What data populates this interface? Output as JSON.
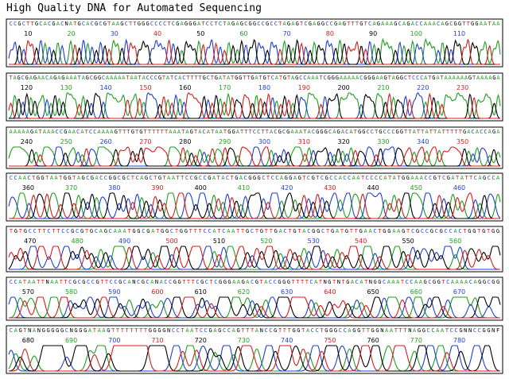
{
  "title": "High Quality DNA for Automated Sequencing",
  "colors": {
    "A": "#1f9e1f",
    "C": "#1f3fd0",
    "G": "#000000",
    "T": "#d41c1c",
    "N": "#000000"
  },
  "chart_data": {
    "type": "line",
    "description_of_series": "four-channel fluorescence chromatogram traces",
    "series": [
      {
        "base": "A",
        "color": "#1f9e1f"
      },
      {
        "base": "C",
        "color": "#1f3fd0"
      },
      {
        "base": "G",
        "color": "#000000"
      },
      {
        "base": "T",
        "color": "#d41c1c"
      }
    ],
    "panels": [
      {
        "sequence": "CCGCTTGCACGACNATGCACGCGTAAGCTTGGGCCCCTCGAGGGATCCTCTAGAGCGGCCGCCTAGAGTCGAGGCCGAGTTTGTCAGAAAGCAGACCAAACAGCGGTTGGAATAA",
        "ticks": [
          "10",
          "20",
          "30",
          "40",
          "50",
          "60",
          "70",
          "80",
          "90",
          "100",
          "110"
        ]
      },
      {
        "sequence": "TAGCGAGAACAGAGAAATAGCGGCAAAAATAATACCCGTATCACTTTTGCTGATATGGTTGATGTCATGTAGCCAAATCGGGAAAAACGGGAAGTAGGCTCCCATGATAAAAAAGTAAAAGA",
        "ticks": [
          "120",
          "130",
          "140",
          "150",
          "160",
          "170",
          "180",
          "190",
          "200",
          "210",
          "220",
          "230"
        ]
      },
      {
        "sequence": "AAAAAGATAAACCGAACATCCAAAAGTTTGTGTTTTTTAAATAGTACATAATGGATTTCCTTACGCGAAATACGGGCAGACATGGCCTGCCCGGTTATTATTATTTTTGACACCAGA",
        "ticks": [
          "240",
          "250",
          "260",
          "270",
          "280",
          "290",
          "300",
          "310",
          "320",
          "330",
          "340",
          "350"
        ]
      },
      {
        "sequence": "CCAACTGGTAATGGTAGCGACCGGCGCTCAGCTGTAATTCCGCCGATACTGACGGGCTCCAGGAGTCGTCGCCACCAATCCCCATATGGAAACCGTCGATATTCAGCCA",
        "ticks": [
          "360",
          "370",
          "380",
          "390",
          "400",
          "410",
          "420",
          "430",
          "440",
          "450",
          "460"
        ]
      },
      {
        "sequence": "TGTGCCTTCTTCCGCGTGCAGCAAATGGCGATGGCTGGTTTCCATCAATTGCTGTTGACTGTACGGCTGATGTTGAACTGGAAGTCGCCGCGCCACTGGTGTGG",
        "ticks": [
          "470",
          "480",
          "490",
          "500",
          "510",
          "520",
          "530",
          "540",
          "550",
          "560"
        ]
      },
      {
        "sequence": "CCATAATTNAATTCGCGCCGTTCCGCANCGCANACCGGTTTCGCTCGGGAAGACGTACCGGGTTTTCATNGTNTGACATNGGCAAATCCAAGCGGTCAAAACAGGCGG",
        "ticks": [
          "570",
          "580",
          "590",
          "600",
          "610",
          "620",
          "630",
          "640",
          "650",
          "660",
          "670"
        ]
      },
      {
        "sequence": "CAGTNANGGGGGCNGGGATAAGTTTTTTTTGGGGNCCTAATCCGAGCCAGTTTANCCGTTTGGTACCTGGGCCAGGTTGGNAATTTNAGGCCAATCCGNNCCGGNF",
        "ticks": [
          "680",
          "690",
          "700",
          "710",
          "720",
          "730",
          "740",
          "750",
          "760",
          "770",
          "780"
        ]
      }
    ]
  }
}
